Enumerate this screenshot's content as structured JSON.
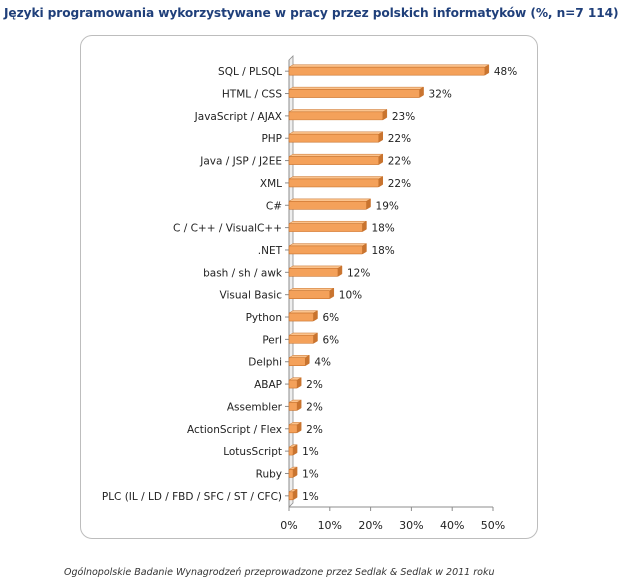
{
  "page": {
    "title": "Języki programowania wykorzystywane w pracy przez polskich informatyków (%, n=7 114)",
    "footer": "Ogólnopolskie Badanie Wynagrodzeń przeprowadzone przez Sedlak & Sedlak w 2011 roku"
  },
  "colors": {
    "title": "#1f3f7a",
    "bar": "#f4a15a",
    "bar_top": "#fbc38d",
    "bar_shade": "#c9742f",
    "axis": "#8c8c8c"
  },
  "chart_data": {
    "type": "bar",
    "orientation": "horizontal",
    "title": "Języki programowania wykorzystywane w pracy przez polskich informatyków (%, n=7 114)",
    "xlim": [
      0,
      50
    ],
    "x_ticks": [
      "0%",
      "10%",
      "20%",
      "30%",
      "40%",
      "50%"
    ],
    "x_tick_values": [
      0,
      10,
      20,
      30,
      40,
      50
    ],
    "grid": false,
    "legend": "none",
    "categories": [
      "SQL / PLSQL",
      "HTML / CSS",
      "JavaScript / AJAX",
      "PHP",
      "Java / JSP / J2EE",
      "XML",
      "C#",
      "C / C++ / VisualC++",
      ".NET",
      "bash / sh / awk",
      "Visual Basic",
      "Python",
      "Perl",
      "Delphi",
      "ABAP",
      "Assembler",
      "ActionScript / Flex",
      "LotusScript",
      "Ruby",
      "PLC (IL / LD / FBD / SFC / ST / CFC)"
    ],
    "values": [
      48,
      32,
      23,
      22,
      22,
      22,
      19,
      18,
      18,
      12,
      10,
      6,
      6,
      4,
      2,
      2,
      2,
      1,
      1,
      1
    ],
    "value_labels": [
      "48%",
      "32%",
      "23%",
      "22%",
      "22%",
      "22%",
      "19%",
      "18%",
      "18%",
      "12%",
      "10%",
      "6%",
      "6%",
      "4%",
      "2%",
      "2%",
      "2%",
      "1%",
      "1%",
      "1%"
    ]
  }
}
